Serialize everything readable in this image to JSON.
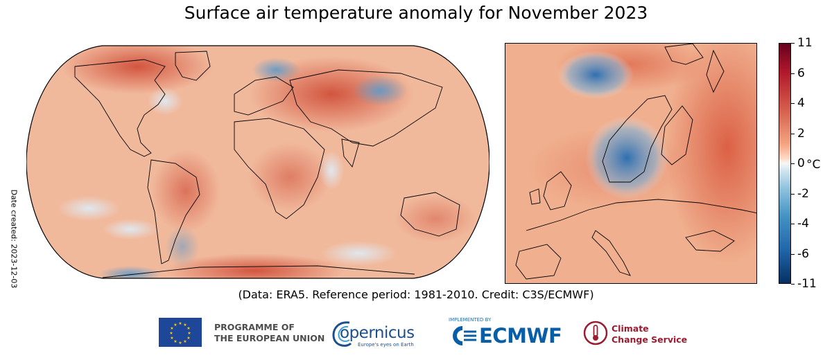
{
  "title": "Surface air temperature anomaly for November 2023",
  "date_created": "Date created: 2023-12-03",
  "caption": "(Data: ERA5.  Reference period: 1981-2010.  Credit: C3S/ECMWF)",
  "colorbar": {
    "unit": "°C",
    "ticks": [
      {
        "value": 11,
        "label": "11"
      },
      {
        "value": 6,
        "label": "6"
      },
      {
        "value": 4,
        "label": "4"
      },
      {
        "value": 2,
        "label": "2"
      },
      {
        "value": 0,
        "label": "0"
      },
      {
        "value": -2,
        "label": "-2"
      },
      {
        "value": -4,
        "label": "-4"
      },
      {
        "value": -6,
        "label": "-6"
      },
      {
        "value": -11,
        "label": "-11"
      }
    ],
    "colors": {
      "max": "#67001f",
      "warm": "#d6604d",
      "neutral": "#f7f7f7",
      "cool": "#4393c3",
      "min": "#053061"
    }
  },
  "logos": {
    "eu_line1": "PROGRAMME OF",
    "eu_line2": "THE EUROPEAN UNION",
    "copernicus": "opernicus",
    "copernicus_tagline": "Europe's eyes on Earth",
    "ecmwf_tagline": "IMPLEMENTED BY",
    "ecmwf": "ECMWF",
    "c3s_line1": "Climate",
    "c3s_line2": "Change Service"
  }
}
